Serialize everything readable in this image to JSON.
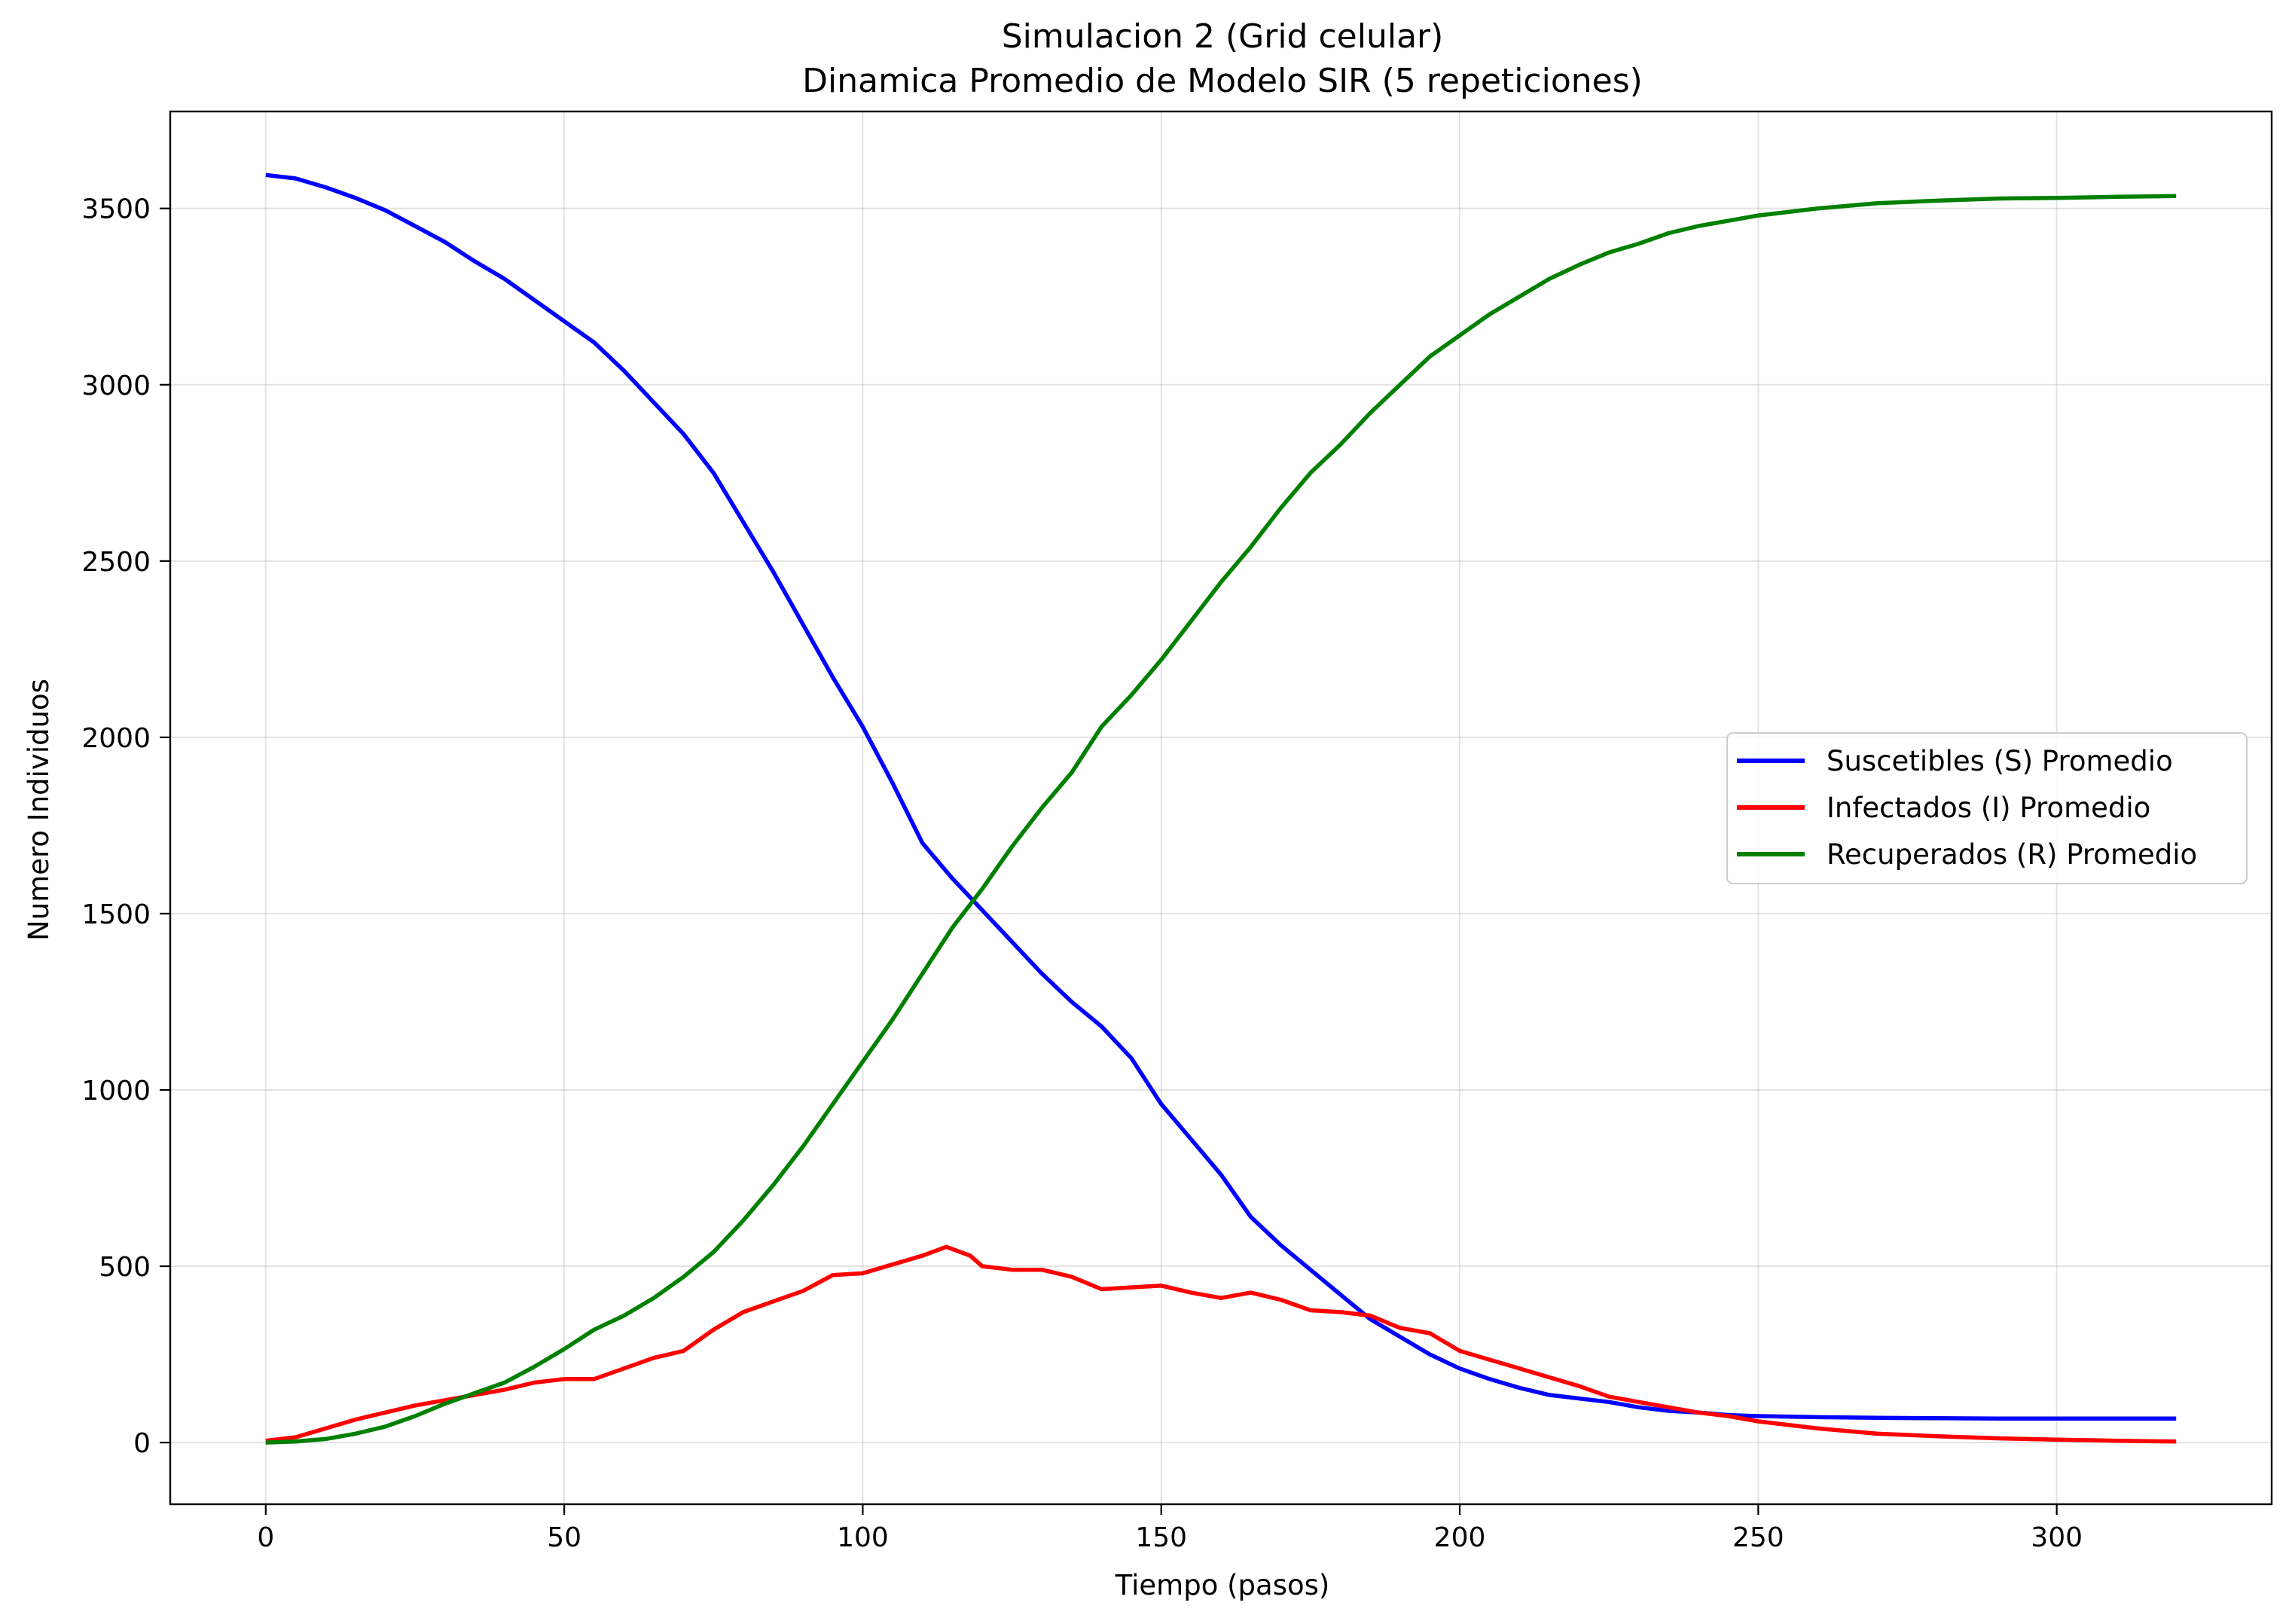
{
  "chart_data": {
    "type": "line",
    "title_lines": [
      "Simulacion 2 (Grid celular)",
      "Dinamica Promedio de Modelo SIR (5 repeticiones)"
    ],
    "xlabel": "Tiempo (pasos)",
    "ylabel": "Numero Individuos",
    "xlim": [
      -16,
      336
    ],
    "ylim": [
      -175,
      3775
    ],
    "xticks": [
      0,
      50,
      100,
      150,
      200,
      250,
      300
    ],
    "yticks": [
      0,
      500,
      1000,
      1500,
      2000,
      2500,
      3000,
      3500
    ],
    "grid": true,
    "legend_position": "center-right",
    "series": [
      {
        "name": "Suscetibles (S) Promedio",
        "color": "#0000ff",
        "x": [
          0,
          5,
          10,
          15,
          20,
          25,
          30,
          35,
          40,
          45,
          50,
          55,
          60,
          65,
          70,
          75,
          80,
          85,
          90,
          95,
          100,
          105,
          110,
          115,
          120,
          125,
          130,
          135,
          140,
          145,
          150,
          155,
          160,
          165,
          170,
          175,
          180,
          185,
          190,
          195,
          200,
          205,
          210,
          215,
          220,
          225,
          230,
          235,
          240,
          245,
          250,
          260,
          270,
          280,
          290,
          300,
          310,
          320
        ],
        "y": [
          3595,
          3585,
          3560,
          3530,
          3495,
          3450,
          3405,
          3350,
          3300,
          3240,
          3180,
          3120,
          3040,
          2950,
          2860,
          2750,
          2610,
          2470,
          2320,
          2170,
          2030,
          1870,
          1700,
          1600,
          1510,
          1420,
          1330,
          1250,
          1180,
          1090,
          960,
          860,
          760,
          640,
          560,
          490,
          420,
          350,
          300,
          250,
          210,
          180,
          155,
          135,
          125,
          115,
          100,
          90,
          85,
          78,
          75,
          72,
          70,
          69,
          68,
          68,
          68,
          68
        ]
      },
      {
        "name": "Infectados (I) Promedio",
        "color": "#ff0000",
        "x": [
          0,
          5,
          10,
          15,
          20,
          25,
          30,
          35,
          40,
          45,
          50,
          55,
          60,
          65,
          70,
          75,
          80,
          85,
          90,
          95,
          100,
          105,
          110,
          114,
          118,
          120,
          125,
          130,
          135,
          140,
          145,
          150,
          155,
          160,
          165,
          170,
          175,
          180,
          185,
          190,
          195,
          200,
          205,
          210,
          215,
          220,
          225,
          230,
          235,
          240,
          245,
          250,
          260,
          270,
          280,
          290,
          300,
          310,
          320
        ],
        "y": [
          5,
          15,
          40,
          65,
          85,
          105,
          120,
          135,
          150,
          170,
          180,
          180,
          210,
          240,
          260,
          320,
          370,
          400,
          430,
          475,
          480,
          505,
          530,
          555,
          530,
          500,
          490,
          490,
          470,
          435,
          440,
          445,
          425,
          410,
          425,
          405,
          375,
          370,
          360,
          325,
          310,
          260,
          235,
          210,
          185,
          160,
          130,
          115,
          100,
          85,
          75,
          60,
          40,
          25,
          18,
          12,
          8,
          5,
          3
        ]
      },
      {
        "name": "Recuperados (R) Promedio",
        "color": "#008000",
        "x": [
          0,
          5,
          10,
          15,
          20,
          25,
          30,
          35,
          40,
          45,
          50,
          55,
          60,
          65,
          70,
          75,
          80,
          85,
          90,
          95,
          100,
          105,
          110,
          115,
          120,
          125,
          130,
          135,
          140,
          145,
          150,
          155,
          160,
          165,
          170,
          175,
          180,
          185,
          190,
          195,
          200,
          205,
          210,
          215,
          220,
          225,
          230,
          235,
          240,
          245,
          250,
          260,
          270,
          280,
          290,
          300,
          310,
          320
        ],
        "y": [
          0,
          3,
          10,
          25,
          45,
          75,
          110,
          140,
          170,
          215,
          265,
          320,
          360,
          410,
          470,
          540,
          630,
          730,
          840,
          960,
          1080,
          1200,
          1330,
          1460,
          1570,
          1690,
          1800,
          1900,
          2030,
          2120,
          2220,
          2330,
          2440,
          2540,
          2650,
          2750,
          2830,
          2920,
          3000,
          3080,
          3140,
          3200,
          3250,
          3300,
          3340,
          3375,
          3400,
          3430,
          3450,
          3465,
          3480,
          3500,
          3515,
          3522,
          3528,
          3530,
          3533,
          3535
        ]
      }
    ]
  }
}
